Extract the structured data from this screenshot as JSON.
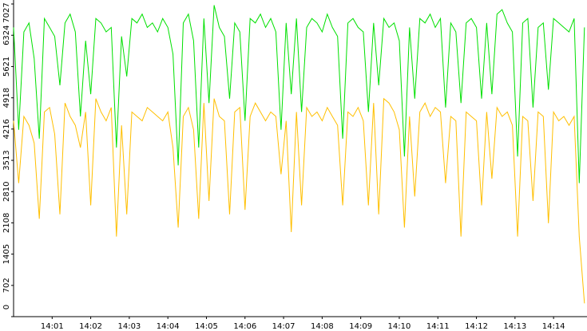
{
  "chart_data": {
    "type": "line",
    "x": [
      0,
      8,
      16,
      24,
      32,
      40,
      48,
      56,
      64,
      72,
      80,
      88,
      96,
      104,
      112,
      120,
      128,
      136,
      144,
      152,
      160,
      168,
      176,
      184,
      192,
      200,
      208,
      216,
      224,
      232,
      240,
      248,
      256,
      264,
      272,
      280,
      288,
      296,
      304,
      312,
      320,
      328,
      336,
      344,
      352,
      360,
      368,
      376,
      384,
      392,
      400,
      408,
      416,
      424,
      432,
      440,
      448,
      456,
      464,
      472,
      480,
      488,
      496,
      504,
      512,
      520,
      528,
      536,
      544,
      552,
      560,
      568,
      576,
      584,
      592,
      600,
      608,
      616,
      624,
      632,
      640,
      648,
      656,
      664,
      672,
      680,
      688,
      696,
      704,
      712,
      720,
      728,
      736,
      744,
      752,
      760,
      768,
      776,
      784,
      792,
      800,
      808,
      816,
      824,
      832,
      840,
      848,
      856,
      864,
      872,
      880,
      888
    ],
    "series": [
      {
        "color": "#00e000",
        "values": [
          6500,
          4200,
          6400,
          6600,
          5800,
          4000,
          6700,
          6500,
          6300,
          5200,
          6600,
          6800,
          6400,
          4500,
          6200,
          5000,
          6700,
          6600,
          6400,
          6500,
          3800,
          6300,
          5400,
          6700,
          6600,
          6800,
          6500,
          6600,
          6400,
          6700,
          6500,
          5900,
          3400,
          6600,
          6800,
          6200,
          3800,
          6700,
          4800,
          7000,
          6500,
          6300,
          4900,
          6600,
          6400,
          4400,
          6700,
          6600,
          6800,
          6500,
          6700,
          6400,
          4200,
          6600,
          5000,
          6700,
          4600,
          6500,
          6700,
          6600,
          6400,
          6800,
          6500,
          6300,
          4000,
          6600,
          6700,
          6500,
          6400,
          4600,
          6600,
          5200,
          6700,
          6500,
          6600,
          6200,
          3600,
          6500,
          4900,
          6700,
          6600,
          6800,
          6500,
          6700,
          4700,
          6600,
          6400,
          4800,
          6600,
          6700,
          6500,
          4900,
          6600,
          5000,
          6800,
          6900,
          6600,
          6400,
          3600,
          6600,
          6700,
          4700,
          6500,
          6600,
          5100,
          6700,
          6600,
          6500,
          6400,
          6700,
          3000,
          6500
        ]
      },
      {
        "color": "#ffbf00",
        "values": [
          4400,
          3000,
          4500,
          4300,
          3900,
          2200,
          4600,
          4700,
          4100,
          2300,
          4800,
          4500,
          4300,
          3800,
          4600,
          2500,
          4900,
          4600,
          4400,
          4700,
          1800,
          4300,
          2300,
          4600,
          4500,
          4400,
          4700,
          4600,
          4500,
          4400,
          4600,
          3800,
          2000,
          4500,
          4700,
          4200,
          2200,
          4800,
          2600,
          4900,
          4500,
          4400,
          2300,
          4600,
          4700,
          2400,
          4500,
          4800,
          4600,
          4400,
          4600,
          4500,
          3200,
          4400,
          1900,
          4600,
          2500,
          4700,
          4500,
          4600,
          4400,
          4700,
          4500,
          4300,
          2500,
          4600,
          4500,
          4700,
          4400,
          2500,
          4800,
          2300,
          4900,
          4800,
          4600,
          4200,
          2000,
          4500,
          2700,
          4600,
          4800,
          4500,
          4700,
          4600,
          3000,
          4500,
          4400,
          1800,
          4600,
          4500,
          4400,
          2500,
          4600,
          3100,
          4700,
          4500,
          4600,
          4300,
          1800,
          4500,
          4400,
          2600,
          4600,
          4500,
          2100,
          4600,
          4400,
          4500,
          4300,
          4500,
          1800,
          300
        ]
      }
    ],
    "xlim": [
      0,
      892
    ],
    "xticks": [
      {
        "value": 60,
        "label": "14:01"
      },
      {
        "value": 120,
        "label": "14:02"
      },
      {
        "value": 180,
        "label": "14:03"
      },
      {
        "value": 240,
        "label": "14:04"
      },
      {
        "value": 300,
        "label": "14:05"
      },
      {
        "value": 360,
        "label": "14:06"
      },
      {
        "value": 420,
        "label": "14:07"
      },
      {
        "value": 480,
        "label": "14:08"
      },
      {
        "value": 540,
        "label": "14:09"
      },
      {
        "value": 600,
        "label": "14:10"
      },
      {
        "value": 660,
        "label": "14:11"
      },
      {
        "value": 720,
        "label": "14:12"
      },
      {
        "value": 780,
        "label": "14:13"
      },
      {
        "value": 840,
        "label": "14:14"
      }
    ],
    "ylim": [
      0,
      7027
    ],
    "yticks": [
      0,
      702,
      1405,
      2108,
      2810,
      3513,
      4216,
      4918,
      5621,
      6324,
      7027
    ]
  }
}
